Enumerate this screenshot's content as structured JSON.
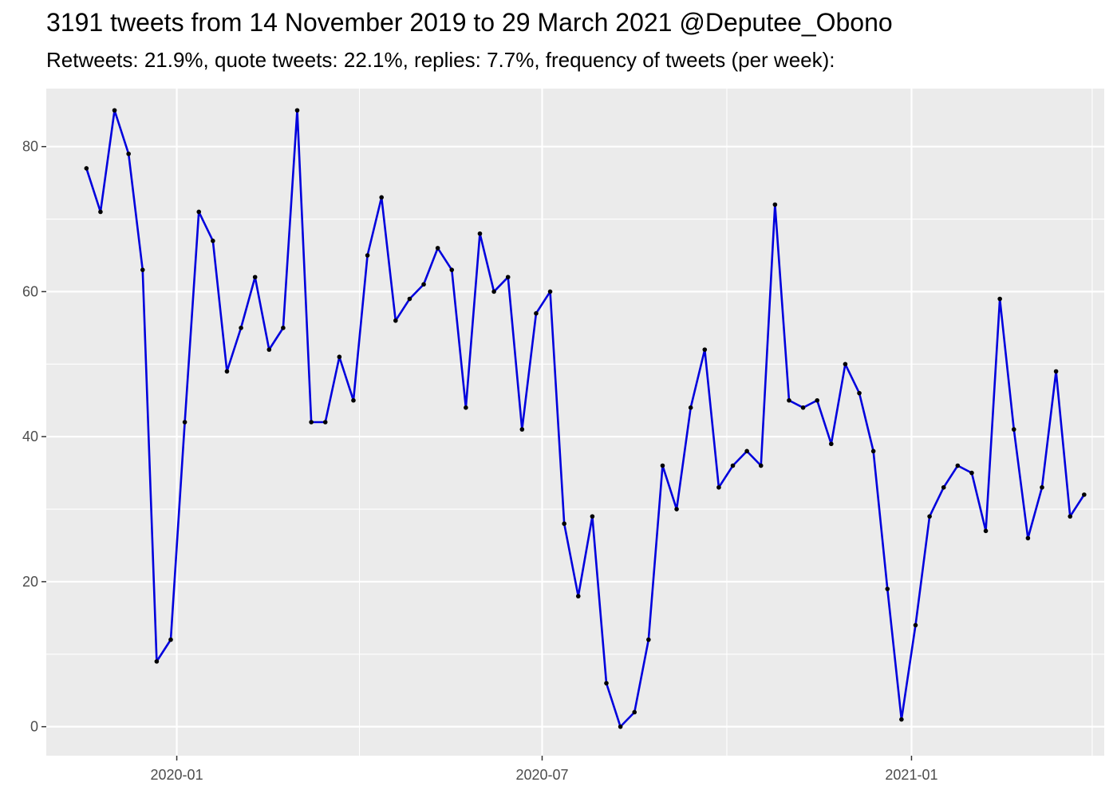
{
  "chart_data": {
    "type": "line",
    "title": "3191 tweets from 14 November 2019 to 29 March 2021 @Deputee_Obono",
    "subtitle": "Retweets: 21.9%, quote tweets: 22.1%, replies: 7.7%, frequency of tweets (per week):",
    "xlabel": "",
    "ylabel": "",
    "ylim": [
      -4,
      88
    ],
    "xlim": [
      "2019-10-28",
      "2021-04-07"
    ],
    "x_ticks": [
      {
        "date": "2020-01-01",
        "label": "2020-01"
      },
      {
        "date": "2020-07-01",
        "label": "2020-07"
      },
      {
        "date": "2021-01-01",
        "label": "2021-01"
      }
    ],
    "x_minor_ticks": [
      "2019-10-01",
      "2020-04-01",
      "2020-10-01",
      "2021-04-01"
    ],
    "y_ticks": [
      0,
      20,
      40,
      60,
      80
    ],
    "y_minor_ticks": [
      10,
      30,
      50,
      70
    ],
    "grid": true,
    "line_color": "#0000dd",
    "point_color": "#000000",
    "panel_color": "#ebebeb",
    "series": [
      {
        "x": [
          "2019-11-17",
          "2019-11-24",
          "2019-12-01",
          "2019-12-08",
          "2019-12-15",
          "2019-12-22",
          "2019-12-29",
          "2020-01-05",
          "2020-01-12",
          "2020-01-19",
          "2020-01-26",
          "2020-02-02",
          "2020-02-09",
          "2020-02-16",
          "2020-02-23",
          "2020-03-01",
          "2020-03-08",
          "2020-03-15",
          "2020-03-22",
          "2020-03-29",
          "2020-04-05",
          "2020-04-12",
          "2020-04-19",
          "2020-04-26",
          "2020-05-03",
          "2020-05-10",
          "2020-05-17",
          "2020-05-24",
          "2020-05-31",
          "2020-06-07",
          "2020-06-14",
          "2020-06-21",
          "2020-06-28",
          "2020-07-05",
          "2020-07-12",
          "2020-07-19",
          "2020-07-26",
          "2020-08-02",
          "2020-08-09",
          "2020-08-16",
          "2020-08-23",
          "2020-08-30",
          "2020-09-06",
          "2020-09-13",
          "2020-09-20",
          "2020-09-27",
          "2020-10-04",
          "2020-10-11",
          "2020-10-18",
          "2020-10-25",
          "2020-11-01",
          "2020-11-08",
          "2020-11-15",
          "2020-11-22",
          "2020-11-29",
          "2020-12-06",
          "2020-12-13",
          "2020-12-20",
          "2020-12-27",
          "2021-01-03",
          "2021-01-10",
          "2021-01-17",
          "2021-01-24",
          "2021-01-31",
          "2021-02-07",
          "2021-02-14",
          "2021-02-21",
          "2021-02-28",
          "2021-03-07",
          "2021-03-14",
          "2021-03-21",
          "2021-03-28"
        ],
        "values": [
          77,
          71,
          85,
          79,
          63,
          9,
          12,
          42,
          71,
          67,
          49,
          55,
          62,
          52,
          55,
          85,
          42,
          42,
          51,
          45,
          65,
          73,
          56,
          59,
          61,
          66,
          63,
          44,
          68,
          60,
          62,
          41,
          57,
          60,
          28,
          18,
          29,
          6,
          0,
          2,
          12,
          36,
          30,
          44,
          52,
          33,
          36,
          38,
          36,
          72,
          45,
          44,
          45,
          39,
          50,
          46,
          38,
          19,
          1,
          14,
          29,
          33,
          36,
          35,
          27,
          59,
          41,
          26,
          33,
          49,
          29,
          32
        ]
      }
    ]
  }
}
